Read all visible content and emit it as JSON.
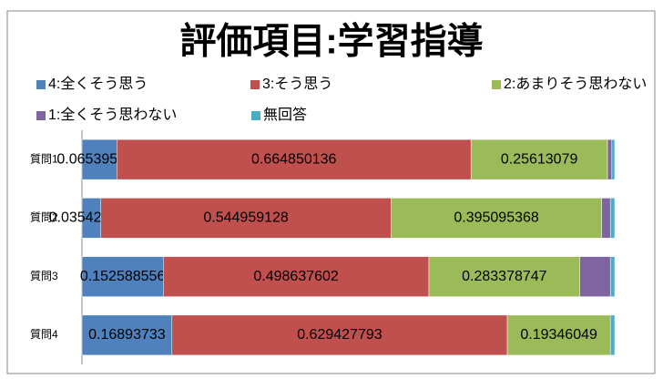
{
  "chart_data": {
    "type": "stacked_bar_horizontal",
    "title": "評価項目:学習指導",
    "categories": [
      "質問1",
      "質問2",
      "質問3",
      "質問4"
    ],
    "series": [
      {
        "name": "4:全くそう思う",
        "color": "#4f81bd",
        "values": [
          0.065395095,
          0.035422343,
          0.152588556,
          0.16893733
        ],
        "labels": true
      },
      {
        "name": "3:そう思う",
        "color": "#c0504d",
        "values": [
          0.664850136,
          0.544959128,
          0.498637602,
          0.629427793
        ],
        "labels": true
      },
      {
        "name": "2:あまりそう思わない",
        "color": "#9bbb59",
        "values": [
          0.25613079,
          0.395095368,
          0.283378747,
          0.19346049
        ],
        "labels": true
      },
      {
        "name": "1:全くそう思わない",
        "color": "#8064a2",
        "values": [
          0.008174387,
          0.016348774,
          0.057220708,
          0
        ],
        "labels": false
      },
      {
        "name": "無回答",
        "color": "#4bacc6",
        "values": [
          0.005449591,
          0.008174387,
          0.008174387,
          0.008174387
        ],
        "labels": false
      }
    ],
    "xlim": [
      0,
      1
    ],
    "legend": "top"
  }
}
